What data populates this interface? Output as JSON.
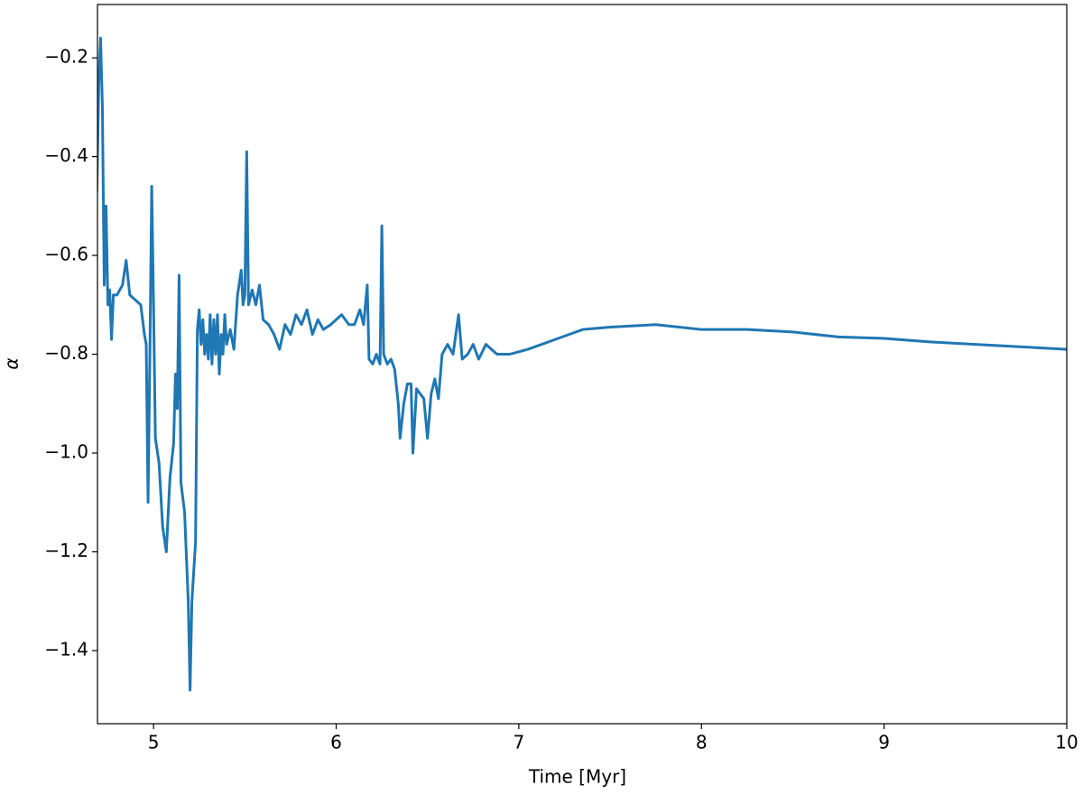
{
  "chart_data": {
    "type": "line",
    "x_label": "Time [Myr]",
    "y_label": "α",
    "color": "#1f77b4",
    "x": [
      4.69,
      4.7,
      4.71,
      4.72,
      4.73,
      4.74,
      4.75,
      4.76,
      4.77,
      4.78,
      4.8,
      4.83,
      4.85,
      4.87,
      4.9,
      4.93,
      4.95,
      4.96,
      4.97,
      4.98,
      4.99,
      5.0,
      5.01,
      5.03,
      5.05,
      5.07,
      5.09,
      5.11,
      5.12,
      5.13,
      5.14,
      5.15,
      5.17,
      5.19,
      5.2,
      5.21,
      5.23,
      5.24,
      5.25,
      5.26,
      5.27,
      5.28,
      5.29,
      5.3,
      5.31,
      5.32,
      5.33,
      5.34,
      5.35,
      5.36,
      5.37,
      5.38,
      5.39,
      5.4,
      5.42,
      5.44,
      5.46,
      5.48,
      5.49,
      5.5,
      5.51,
      5.52,
      5.54,
      5.56,
      5.58,
      5.6,
      5.63,
      5.66,
      5.69,
      5.72,
      5.75,
      5.78,
      5.81,
      5.84,
      5.87,
      5.9,
      5.93,
      5.97,
      6.0,
      6.03,
      6.07,
      6.1,
      6.13,
      6.15,
      6.17,
      6.18,
      6.2,
      6.22,
      6.24,
      6.25,
      6.26,
      6.28,
      6.3,
      6.32,
      6.34,
      6.35,
      6.37,
      6.39,
      6.41,
      6.42,
      6.44,
      6.46,
      6.48,
      6.5,
      6.52,
      6.54,
      6.56,
      6.58,
      6.61,
      6.64,
      6.67,
      6.69,
      6.72,
      6.75,
      6.78,
      6.82,
      6.85,
      6.88,
      6.95,
      7.05,
      7.2,
      7.35,
      7.5,
      7.75,
      8.0,
      8.25,
      8.5,
      8.75,
      9.0,
      9.25,
      9.5,
      9.75,
      10.0
    ],
    "values": [
      -0.47,
      -0.25,
      -0.16,
      -0.3,
      -0.66,
      -0.5,
      -0.7,
      -0.67,
      -0.77,
      -0.68,
      -0.68,
      -0.66,
      -0.61,
      -0.68,
      -0.69,
      -0.7,
      -0.76,
      -0.78,
      -1.1,
      -0.8,
      -0.46,
      -0.7,
      -0.97,
      -1.02,
      -1.15,
      -1.2,
      -1.05,
      -0.98,
      -0.84,
      -0.91,
      -0.64,
      -1.06,
      -1.12,
      -1.3,
      -1.48,
      -1.3,
      -1.18,
      -0.75,
      -0.71,
      -0.78,
      -0.73,
      -0.8,
      -0.76,
      -0.81,
      -0.72,
      -0.82,
      -0.73,
      -0.8,
      -0.72,
      -0.84,
      -0.76,
      -0.8,
      -0.72,
      -0.78,
      -0.75,
      -0.79,
      -0.68,
      -0.63,
      -0.7,
      -0.68,
      -0.39,
      -0.7,
      -0.67,
      -0.7,
      -0.66,
      -0.73,
      -0.74,
      -0.76,
      -0.79,
      -0.74,
      -0.76,
      -0.72,
      -0.74,
      -0.71,
      -0.76,
      -0.73,
      -0.75,
      -0.74,
      -0.73,
      -0.72,
      -0.74,
      -0.74,
      -0.71,
      -0.74,
      -0.66,
      -0.81,
      -0.82,
      -0.8,
      -0.82,
      -0.54,
      -0.8,
      -0.82,
      -0.81,
      -0.83,
      -0.9,
      -0.97,
      -0.9,
      -0.86,
      -0.86,
      -1.0,
      -0.87,
      -0.88,
      -0.89,
      -0.97,
      -0.88,
      -0.85,
      -0.89,
      -0.8,
      -0.78,
      -0.8,
      -0.72,
      -0.81,
      -0.8,
      -0.78,
      -0.81,
      -0.78,
      -0.79,
      -0.8,
      -0.8,
      -0.79,
      -0.77,
      -0.75,
      -0.745,
      -0.74,
      -0.75,
      -0.75,
      -0.755,
      -0.765,
      -0.768,
      -0.775,
      -0.78,
      -0.785,
      -0.79
    ],
    "xlim": [
      4.693,
      10
    ],
    "ylim": [
      -1.548,
      -0.092
    ],
    "xticks": [
      5,
      6,
      7,
      8,
      9,
      10
    ],
    "yticks": [
      {
        "value": -0.2,
        "label": "−0.2"
      },
      {
        "value": -0.4,
        "label": "−0.4"
      },
      {
        "value": -0.6,
        "label": "−0.6"
      },
      {
        "value": -0.8,
        "label": "−0.8"
      },
      {
        "value": -1.0,
        "label": "−1.0"
      },
      {
        "value": -1.2,
        "label": "−1.2"
      },
      {
        "value": -1.4,
        "label": "−1.4"
      }
    ]
  }
}
